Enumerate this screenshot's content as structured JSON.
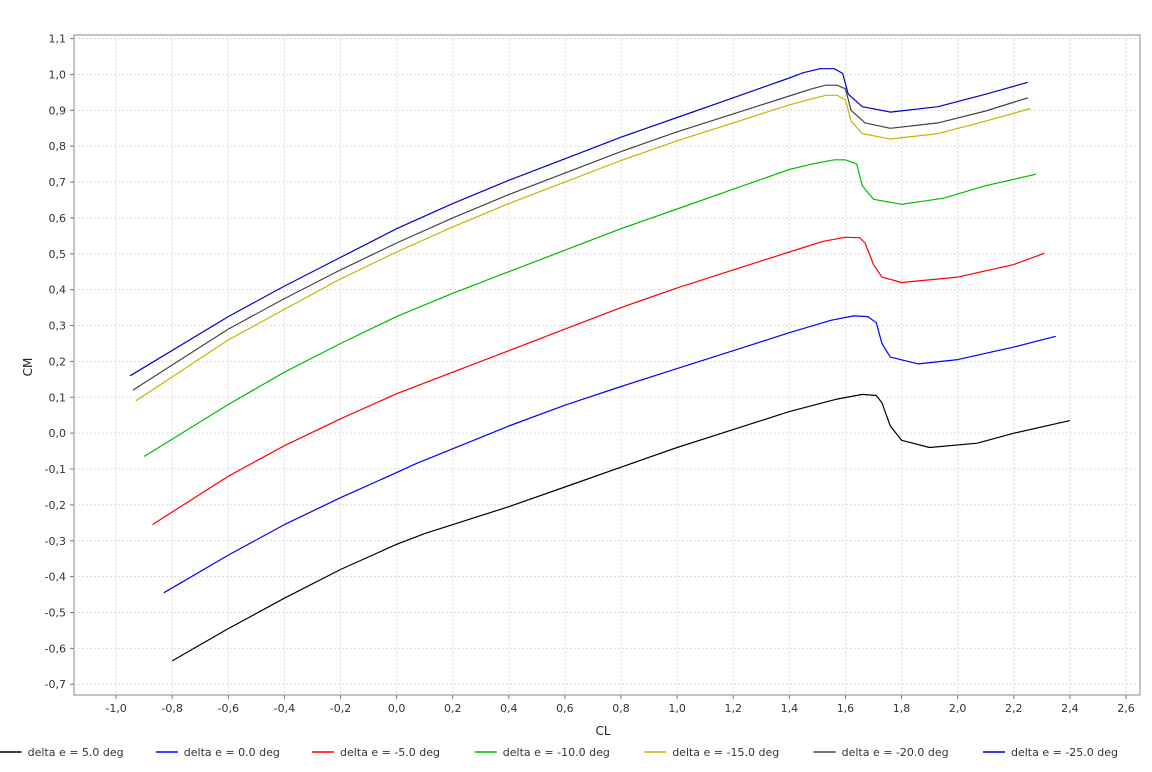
{
  "chart_data": {
    "type": "line",
    "title": "",
    "xlabel": "CL",
    "ylabel": "CM",
    "xlim": [
      -1.15,
      2.65
    ],
    "ylim": [
      -0.73,
      1.11
    ],
    "x_ticks": [
      -1.0,
      -0.8,
      -0.6,
      -0.4,
      -0.2,
      0.0,
      0.2,
      0.4,
      0.6,
      0.8,
      1.0,
      1.2,
      1.4,
      1.6,
      1.8,
      2.0,
      2.2,
      2.4,
      2.6
    ],
    "x_tick_labels": [
      "-1,0",
      "-0,8",
      "-0,6",
      "-0,4",
      "-0,2",
      "0,0",
      "0,2",
      "0,4",
      "0,6",
      "0,8",
      "1,0",
      "1,2",
      "1,4",
      "1,6",
      "1,8",
      "2,0",
      "2,2",
      "2,4",
      "2,6"
    ],
    "y_ticks": [
      -0.7,
      -0.6,
      -0.5,
      -0.4,
      -0.3,
      -0.2,
      -0.1,
      0.0,
      0.1,
      0.2,
      0.3,
      0.4,
      0.5,
      0.6,
      0.7,
      0.8,
      0.9,
      1.0,
      1.1
    ],
    "y_tick_labels": [
      "-0,7",
      "-0,6",
      "-0,5",
      "-0,4",
      "-0,3",
      "-0,2",
      "-0,1",
      "0,0",
      "0,1",
      "0,2",
      "0,3",
      "0,4",
      "0,5",
      "0,6",
      "0,7",
      "0,8",
      "0,9",
      "1,0",
      "1,1"
    ],
    "grid": true,
    "legend_position": "bottom",
    "series": [
      {
        "name": "delta e = 5.0 deg",
        "color": "#000000",
        "points": [
          [
            -0.8,
            -0.635
          ],
          [
            -0.6,
            -0.545
          ],
          [
            -0.4,
            -0.46
          ],
          [
            -0.2,
            -0.38
          ],
          [
            0.0,
            -0.31
          ],
          [
            0.1,
            -0.28
          ],
          [
            0.4,
            -0.205
          ],
          [
            0.6,
            -0.15
          ],
          [
            0.8,
            -0.095
          ],
          [
            1.0,
            -0.04
          ],
          [
            1.2,
            0.01
          ],
          [
            1.4,
            0.06
          ],
          [
            1.57,
            0.095
          ],
          [
            1.66,
            0.108
          ],
          [
            1.71,
            0.105
          ],
          [
            1.73,
            0.085
          ],
          [
            1.76,
            0.02
          ],
          [
            1.8,
            -0.02
          ],
          [
            1.9,
            -0.04
          ],
          [
            2.07,
            -0.028
          ],
          [
            2.2,
            0.0
          ],
          [
            2.4,
            0.035
          ]
        ]
      },
      {
        "name": "delta e = 0.0 deg",
        "color": "#0000ff",
        "points": [
          [
            -0.83,
            -0.445
          ],
          [
            -0.6,
            -0.34
          ],
          [
            -0.4,
            -0.255
          ],
          [
            -0.2,
            -0.18
          ],
          [
            0.0,
            -0.11
          ],
          [
            0.07,
            -0.085
          ],
          [
            0.4,
            0.02
          ],
          [
            0.6,
            0.078
          ],
          [
            0.8,
            0.13
          ],
          [
            1.0,
            0.18
          ],
          [
            1.2,
            0.23
          ],
          [
            1.4,
            0.28
          ],
          [
            1.55,
            0.315
          ],
          [
            1.63,
            0.327
          ],
          [
            1.68,
            0.325
          ],
          [
            1.71,
            0.308
          ],
          [
            1.73,
            0.25
          ],
          [
            1.76,
            0.212
          ],
          [
            1.86,
            0.193
          ],
          [
            2.0,
            0.205
          ],
          [
            2.2,
            0.24
          ],
          [
            2.35,
            0.27
          ]
        ]
      },
      {
        "name": "delta e = -5.0 deg",
        "color": "#ff0000",
        "points": [
          [
            -0.87,
            -0.255
          ],
          [
            -0.6,
            -0.12
          ],
          [
            -0.4,
            -0.035
          ],
          [
            -0.2,
            0.04
          ],
          [
            0.0,
            0.11
          ],
          [
            0.2,
            0.17
          ],
          [
            0.4,
            0.23
          ],
          [
            0.6,
            0.29
          ],
          [
            0.8,
            0.35
          ],
          [
            1.0,
            0.405
          ],
          [
            1.2,
            0.455
          ],
          [
            1.4,
            0.505
          ],
          [
            1.52,
            0.535
          ],
          [
            1.6,
            0.546
          ],
          [
            1.65,
            0.545
          ],
          [
            1.67,
            0.53
          ],
          [
            1.7,
            0.47
          ],
          [
            1.73,
            0.435
          ],
          [
            1.8,
            0.42
          ],
          [
            2.0,
            0.435
          ],
          [
            2.2,
            0.47
          ],
          [
            2.31,
            0.502
          ]
        ]
      },
      {
        "name": "delta e = -10.0 deg",
        "color": "#00bb00",
        "points": [
          [
            -0.9,
            -0.065
          ],
          [
            -0.6,
            0.08
          ],
          [
            -0.4,
            0.17
          ],
          [
            -0.2,
            0.25
          ],
          [
            0.0,
            0.325
          ],
          [
            0.2,
            0.39
          ],
          [
            0.4,
            0.45
          ],
          [
            0.6,
            0.51
          ],
          [
            0.8,
            0.57
          ],
          [
            1.0,
            0.625
          ],
          [
            1.2,
            0.68
          ],
          [
            1.4,
            0.735
          ],
          [
            1.48,
            0.75
          ],
          [
            1.56,
            0.762
          ],
          [
            1.6,
            0.762
          ],
          [
            1.64,
            0.75
          ],
          [
            1.66,
            0.69
          ],
          [
            1.7,
            0.652
          ],
          [
            1.8,
            0.638
          ],
          [
            1.95,
            0.655
          ],
          [
            2.1,
            0.69
          ],
          [
            2.28,
            0.722
          ]
        ]
      },
      {
        "name": "delta e = -15.0 deg",
        "color": "#c8b400",
        "points": [
          [
            -0.93,
            0.09
          ],
          [
            -0.6,
            0.26
          ],
          [
            -0.4,
            0.345
          ],
          [
            -0.2,
            0.43
          ],
          [
            0.0,
            0.505
          ],
          [
            0.2,
            0.575
          ],
          [
            0.4,
            0.64
          ],
          [
            0.6,
            0.7
          ],
          [
            0.8,
            0.76
          ],
          [
            1.0,
            0.815
          ],
          [
            1.2,
            0.865
          ],
          [
            1.4,
            0.915
          ],
          [
            1.47,
            0.93
          ],
          [
            1.53,
            0.942
          ],
          [
            1.57,
            0.942
          ],
          [
            1.6,
            0.93
          ],
          [
            1.62,
            0.87
          ],
          [
            1.66,
            0.835
          ],
          [
            1.76,
            0.82
          ],
          [
            1.93,
            0.835
          ],
          [
            2.1,
            0.87
          ],
          [
            2.26,
            0.905
          ]
        ]
      },
      {
        "name": "delta e = -20.0 deg",
        "color": "#444444",
        "points": [
          [
            -0.94,
            0.12
          ],
          [
            -0.6,
            0.29
          ],
          [
            -0.4,
            0.375
          ],
          [
            -0.2,
            0.455
          ],
          [
            0.0,
            0.53
          ],
          [
            0.2,
            0.6
          ],
          [
            0.4,
            0.665
          ],
          [
            0.6,
            0.725
          ],
          [
            0.8,
            0.785
          ],
          [
            1.0,
            0.84
          ],
          [
            1.2,
            0.89
          ],
          [
            1.4,
            0.94
          ],
          [
            1.48,
            0.96
          ],
          [
            1.53,
            0.97
          ],
          [
            1.57,
            0.97
          ],
          [
            1.6,
            0.96
          ],
          [
            1.62,
            0.9
          ],
          [
            1.67,
            0.865
          ],
          [
            1.76,
            0.85
          ],
          [
            1.93,
            0.865
          ],
          [
            2.1,
            0.898
          ],
          [
            2.25,
            0.935
          ]
        ]
      },
      {
        "name": "delta e = -25.0 deg",
        "color": "#0000cc",
        "points": [
          [
            -0.95,
            0.16
          ],
          [
            -0.6,
            0.325
          ],
          [
            -0.4,
            0.41
          ],
          [
            -0.2,
            0.49
          ],
          [
            0.0,
            0.57
          ],
          [
            0.2,
            0.64
          ],
          [
            0.4,
            0.705
          ],
          [
            0.6,
            0.765
          ],
          [
            0.8,
            0.825
          ],
          [
            1.0,
            0.88
          ],
          [
            1.2,
            0.935
          ],
          [
            1.4,
            0.99
          ],
          [
            1.45,
            1.005
          ],
          [
            1.51,
            1.016
          ],
          [
            1.56,
            1.016
          ],
          [
            1.59,
            1.003
          ],
          [
            1.61,
            0.945
          ],
          [
            1.66,
            0.91
          ],
          [
            1.76,
            0.895
          ],
          [
            1.93,
            0.91
          ],
          [
            2.1,
            0.945
          ],
          [
            2.25,
            0.978
          ]
        ]
      }
    ]
  }
}
